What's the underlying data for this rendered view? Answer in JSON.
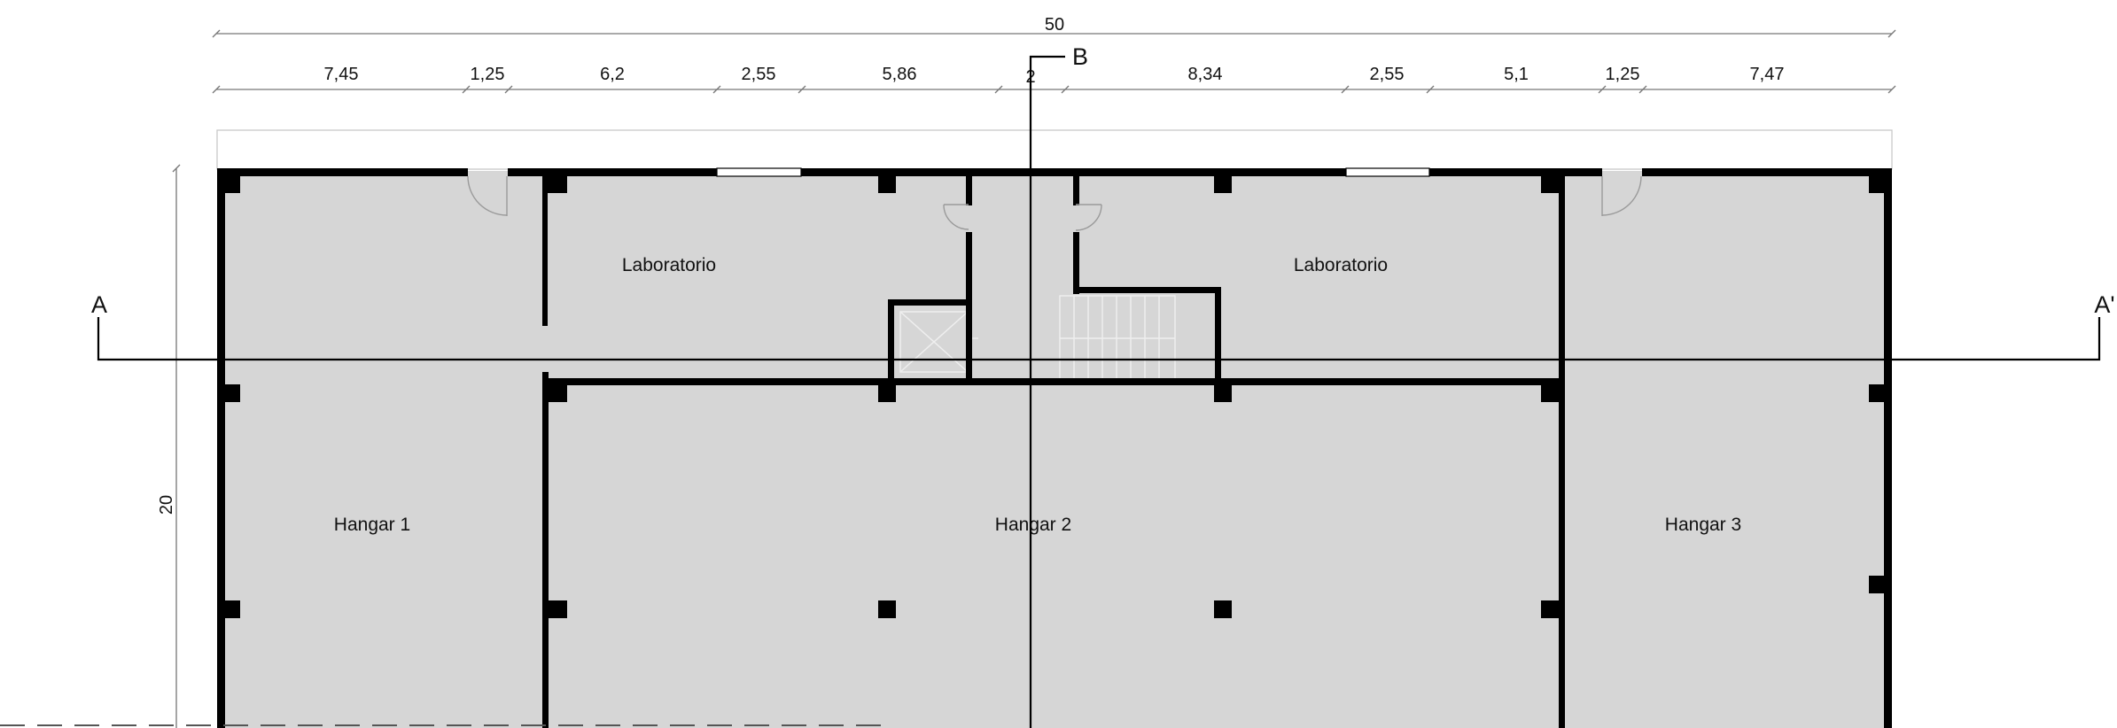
{
  "dimensions": {
    "total_width": "50",
    "segments": [
      "7,45",
      "1,25",
      "6,2",
      "2,55",
      "5,86",
      "2",
      "8,34",
      "2,55",
      "5,1",
      "1,25",
      "7,47"
    ],
    "height": "20"
  },
  "rooms": {
    "lab_left": "Laboratorio",
    "lab_right": "Laboratorio",
    "hangar_1": "Hangar 1",
    "hangar_2": "Hangar 2",
    "hangar_3": "Hangar 3"
  },
  "section_marks": {
    "a_left": "A",
    "a_right": "A'",
    "b": "B"
  },
  "colors": {
    "floor": "#d6d6d6",
    "wall": "#000000",
    "thin_line": "#777777"
  }
}
